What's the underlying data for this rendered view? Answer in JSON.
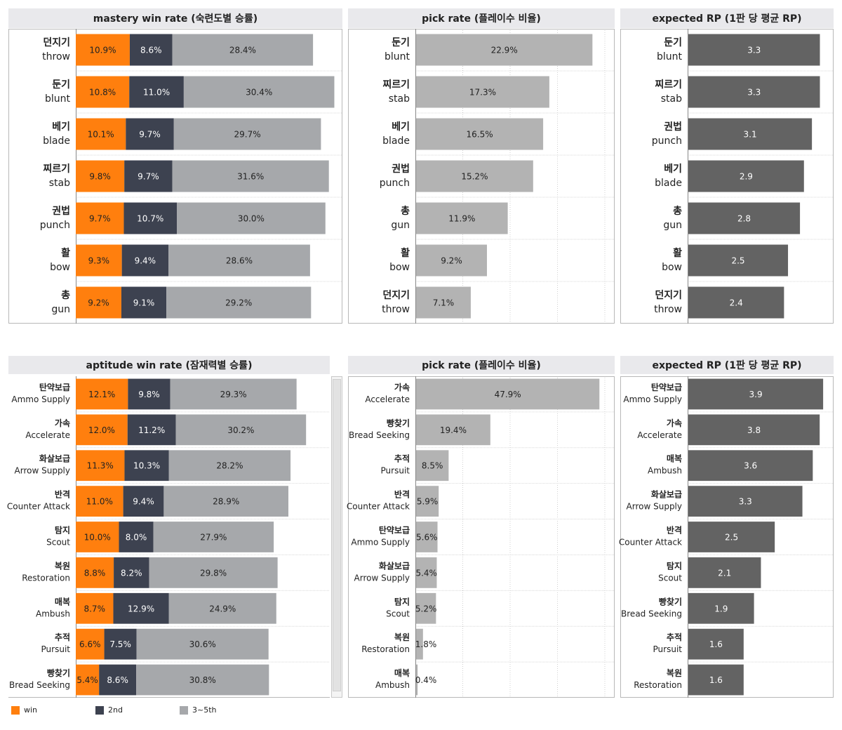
{
  "colors": {
    "win": "#ff7f0e",
    "second": "#3d4250",
    "third_fifth": "#a6a8ab",
    "pick_bar": "#b3b3b3",
    "rp_bar": "#636363",
    "header_bg": "#e9e9ec",
    "frame": "#b8b8b8",
    "grid": "#d0d0d0"
  },
  "legend": [
    {
      "key": "win",
      "label": "win",
      "color": "#ff7f0e"
    },
    {
      "key": "second",
      "label": "2nd",
      "color": "#3d4250"
    },
    {
      "key": "third_fifth",
      "label": "3~5th",
      "color": "#a6a8ab"
    }
  ],
  "chart_data": [
    {
      "id": "mastery-win",
      "type": "bar",
      "stacked": true,
      "title": "mastery win rate (숙련도별 승률)",
      "categories": [
        {
          "ko": "던지기",
          "en": "throw"
        },
        {
          "ko": "둔기",
          "en": "blunt"
        },
        {
          "ko": "베기",
          "en": "blade"
        },
        {
          "ko": "찌르기",
          "en": "stab"
        },
        {
          "ko": "권법",
          "en": "punch"
        },
        {
          "ko": "활",
          "en": "bow"
        },
        {
          "ko": "총",
          "en": "gun"
        }
      ],
      "series": [
        {
          "name": "win",
          "color": "#ff7f0e",
          "values": [
            10.9,
            10.8,
            10.1,
            9.8,
            9.7,
            9.3,
            9.2
          ],
          "labels": [
            "10.9%",
            "10.8%",
            "10.1%",
            "9.8%",
            "9.7%",
            "9.3%",
            "9.2%"
          ]
        },
        {
          "name": "2nd",
          "color": "#3d4250",
          "values": [
            8.6,
            11.0,
            9.7,
            9.7,
            10.7,
            9.4,
            9.1
          ],
          "labels": [
            "8.6%",
            "11.0%",
            "9.7%",
            "9.7%",
            "10.7%",
            "9.4%",
            "9.1%"
          ]
        },
        {
          "name": "3~5th",
          "color": "#a6a8ab",
          "values": [
            28.4,
            30.4,
            29.7,
            31.6,
            30.0,
            28.6,
            29.2
          ],
          "labels": [
            "28.4%",
            "30.4%",
            "29.7%",
            "31.6%",
            "30.0%",
            "28.6%",
            "29.2%"
          ]
        }
      ],
      "xlim": [
        0,
        52.7
      ]
    },
    {
      "id": "mastery-pick",
      "type": "bar",
      "title": "pick rate (플레이수 비율)",
      "categories": [
        {
          "ko": "둔기",
          "en": "blunt"
        },
        {
          "ko": "찌르기",
          "en": "stab"
        },
        {
          "ko": "베기",
          "en": "blade"
        },
        {
          "ko": "권법",
          "en": "punch"
        },
        {
          "ko": "총",
          "en": "gun"
        },
        {
          "ko": "활",
          "en": "bow"
        },
        {
          "ko": "던지기",
          "en": "throw"
        }
      ],
      "values": [
        22.9,
        17.3,
        16.5,
        15.2,
        11.9,
        9.2,
        7.1
      ],
      "labels": [
        "22.9%",
        "17.3%",
        "16.5%",
        "15.2%",
        "11.9%",
        "9.2%",
        "7.1%"
      ],
      "xlim": [
        0,
        24.6
      ],
      "grid": true
    },
    {
      "id": "mastery-rp",
      "type": "bar",
      "title": "expected RP (1판 당 평균 RP)",
      "categories": [
        {
          "ko": "둔기",
          "en": "blunt"
        },
        {
          "ko": "찌르기",
          "en": "stab"
        },
        {
          "ko": "권법",
          "en": "punch"
        },
        {
          "ko": "베기",
          "en": "blade"
        },
        {
          "ko": "총",
          "en": "gun"
        },
        {
          "ko": "활",
          "en": "bow"
        },
        {
          "ko": "던지기",
          "en": "throw"
        }
      ],
      "values": [
        3.3,
        3.3,
        3.1,
        2.9,
        2.8,
        2.5,
        2.4
      ],
      "labels": [
        "3.3",
        "3.3",
        "3.1",
        "2.9",
        "2.8",
        "2.5",
        "2.4"
      ],
      "xlim": [
        0,
        3.52
      ]
    },
    {
      "id": "aptitude-win",
      "type": "bar",
      "stacked": true,
      "title": "aptitude win rate (잠재력별 승률)",
      "categories": [
        {
          "ko": "탄약보급",
          "en": "Ammo Supply"
        },
        {
          "ko": "가속",
          "en": "Accelerate"
        },
        {
          "ko": "화살보급",
          "en": "Arrow Supply"
        },
        {
          "ko": "반격",
          "en": "Counter Attack"
        },
        {
          "ko": "탐지",
          "en": "Scout"
        },
        {
          "ko": "복원",
          "en": "Restoration"
        },
        {
          "ko": "매복",
          "en": "Ambush"
        },
        {
          "ko": "추적",
          "en": "Pursuit"
        },
        {
          "ko": "빵찾기",
          "en": "Bread Seeking"
        }
      ],
      "series": [
        {
          "name": "win",
          "color": "#ff7f0e",
          "values": [
            12.1,
            12.0,
            11.3,
            11.0,
            10.0,
            8.8,
            8.7,
            6.6,
            5.4
          ],
          "labels": [
            "12.1%",
            "12.0%",
            "11.3%",
            "11.0%",
            "10.0%",
            "8.8%",
            "8.7%",
            "6.6%",
            "5.4%"
          ]
        },
        {
          "name": "2nd",
          "color": "#3d4250",
          "values": [
            9.8,
            11.2,
            10.3,
            9.4,
            8.0,
            8.2,
            12.9,
            7.5,
            8.6
          ],
          "labels": [
            "9.8%",
            "11.2%",
            "10.3%",
            "9.4%",
            "8.0%",
            "8.2%",
            "12.9%",
            "7.5%",
            "8.6%"
          ]
        },
        {
          "name": "3~5th",
          "color": "#a6a8ab",
          "values": [
            29.3,
            30.2,
            28.2,
            28.9,
            27.9,
            29.8,
            24.9,
            30.6,
            30.8
          ],
          "labels": [
            "29.3%",
            "30.2%",
            "28.2%",
            "28.9%",
            "27.9%",
            "29.8%",
            "24.9%",
            "30.6%",
            "30.8%"
          ]
        }
      ],
      "xlim": [
        0,
        57.6
      ]
    },
    {
      "id": "aptitude-pick",
      "type": "bar",
      "title": "pick rate (플레이수 비율)",
      "categories": [
        {
          "ko": "가속",
          "en": "Accelerate"
        },
        {
          "ko": "빵찾기",
          "en": "Bread Seeking"
        },
        {
          "ko": "추적",
          "en": "Pursuit"
        },
        {
          "ko": "반격",
          "en": "Counter Attack"
        },
        {
          "ko": "탄약보급",
          "en": "Ammo Supply"
        },
        {
          "ko": "화살보급",
          "en": "Arrow Supply"
        },
        {
          "ko": "탐지",
          "en": "Scout"
        },
        {
          "ko": "복원",
          "en": "Restoration"
        },
        {
          "ko": "매복",
          "en": "Ambush"
        }
      ],
      "values": [
        47.9,
        19.4,
        8.5,
        5.9,
        5.6,
        5.4,
        5.2,
        1.8,
        0.4
      ],
      "labels": [
        "47.9%",
        "19.4%",
        "8.5%",
        "5.9%",
        "5.6%",
        "5.4%",
        "5.2%",
        "1.8%",
        "0.4%"
      ],
      "xlim": [
        0,
        49.5
      ],
      "grid": true
    },
    {
      "id": "aptitude-rp",
      "type": "bar",
      "title": "expected RP (1판 당 평균 RP)",
      "categories": [
        {
          "ko": "탄약보급",
          "en": "Ammo Supply"
        },
        {
          "ko": "가속",
          "en": "Accelerate"
        },
        {
          "ko": "매복",
          "en": "Ambush"
        },
        {
          "ko": "화살보급",
          "en": "Arrow Supply"
        },
        {
          "ko": "반격",
          "en": "Counter Attack"
        },
        {
          "ko": "탐지",
          "en": "Scout"
        },
        {
          "ko": "빵찾기",
          "en": "Bread Seeking"
        },
        {
          "ko": "추적",
          "en": "Pursuit"
        },
        {
          "ko": "복원",
          "en": "Restoration"
        }
      ],
      "values": [
        3.9,
        3.8,
        3.6,
        3.3,
        2.5,
        2.1,
        1.9,
        1.6,
        1.6
      ],
      "labels": [
        "3.9",
        "3.8",
        "3.6",
        "3.3",
        "2.5",
        "2.1",
        "1.9",
        "1.6",
        "1.6"
      ],
      "xlim": [
        0,
        4.06
      ]
    }
  ]
}
